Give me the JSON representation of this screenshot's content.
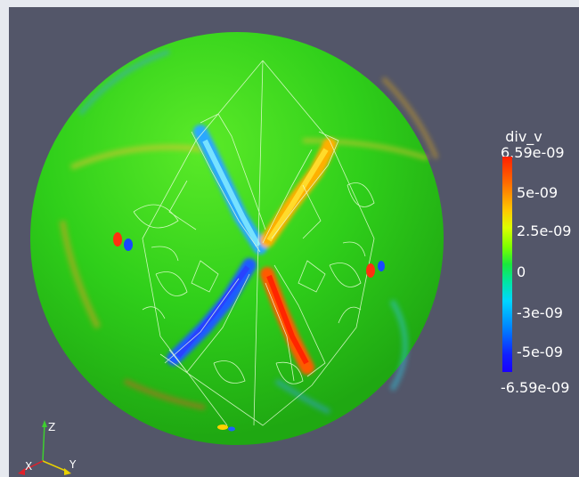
{
  "colorbar": {
    "title": "div_v",
    "max_label": "6.59e-09",
    "ticks": [
      "5e-09",
      "2.5e-09",
      "0",
      "-3e-09",
      "-5e-09"
    ],
    "min_label": "-6.59e-09"
  },
  "axes": {
    "x_label": "X",
    "y_label": "Y",
    "z_label": "Z"
  },
  "colors": {
    "viewport_bg": "#535669",
    "window_bg": "#e6e9ef",
    "sphere_base": "#2fcf1a",
    "x_axis": "#e0202a",
    "y_axis": "#e8d000",
    "z_axis": "#3ecf2f"
  }
}
